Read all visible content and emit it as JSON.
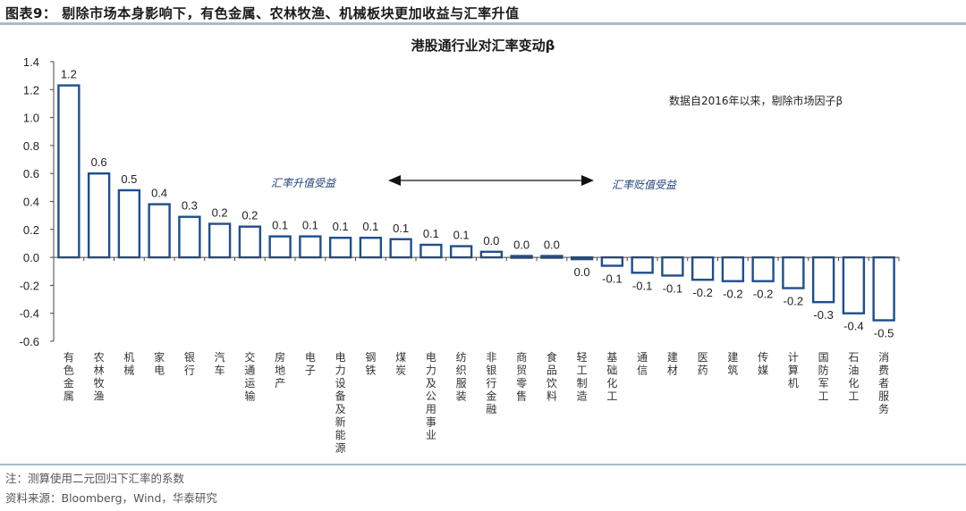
{
  "figure": {
    "title": "图表9： 剔除市场本身影响下，有色金属、农林牧渔、机械板块更加收益与汇率升值",
    "note_right": "数据自2016年以来，剔除市场因子β",
    "annotation_left": "汇率升值受益",
    "annotation_right": "汇率贬值受益",
    "footnote": "注：测算使用二元回归下汇率的系数",
    "source": "资料来源：Bloomberg，Wind，华泰研究"
  },
  "colors": {
    "bar_stroke": "#1f4e8c",
    "bar_fill": "#ffffff",
    "axis": "#444444",
    "rule": "#a9bcd0"
  },
  "chart_data": {
    "type": "bar",
    "title": "港股通行业对汇率变动β",
    "xlabel": "",
    "ylabel": "",
    "ylim": [
      -0.6,
      1.4
    ],
    "yticks": [
      1.4,
      1.2,
      1.0,
      0.8,
      0.6,
      0.4,
      0.2,
      0.0,
      -0.2,
      -0.4,
      -0.6
    ],
    "ytick_labels": [
      "1.4",
      "1.2",
      "1.0",
      "0.8",
      "0.6",
      "0.4",
      "0.2",
      "0.0",
      "-0.2",
      "-0.4",
      "-0.6"
    ],
    "grid": false,
    "legend": null,
    "categories": [
      "有色金属",
      "农林牧渔",
      "机械",
      "家电",
      "银行",
      "汽车",
      "交通运输",
      "房地产",
      "电子",
      "电力设备及新能源",
      "钢铁",
      "煤炭",
      "电力及公用事业",
      "纺织服装",
      "非银行金融",
      "商贸零售",
      "食品饮料",
      "轻工制造",
      "基础化工",
      "通信",
      "建材",
      "医药",
      "建筑",
      "传媒",
      "计算机",
      "国防军工",
      "石油化工",
      "消费者服务"
    ],
    "values": [
      1.23,
      0.6,
      0.48,
      0.38,
      0.29,
      0.24,
      0.22,
      0.15,
      0.15,
      0.14,
      0.14,
      0.13,
      0.09,
      0.08,
      0.04,
      0.01,
      0.01,
      -0.01,
      -0.06,
      -0.11,
      -0.13,
      -0.16,
      -0.17,
      -0.17,
      -0.22,
      -0.32,
      -0.4,
      -0.45
    ],
    "data_labels": [
      "1.2",
      "0.6",
      "0.5",
      "0.4",
      "0.3",
      "0.2",
      "0.2",
      "0.1",
      "0.1",
      "0.1",
      "0.1",
      "0.1",
      "0.1",
      "0.1",
      "0.0",
      "0.0",
      "0.0",
      "0.0",
      "-0.1",
      "-0.1",
      "-0.1",
      "-0.2",
      "-0.2",
      "-0.2",
      "-0.2",
      "-0.3",
      "-0.4",
      "-0.5"
    ],
    "annotations": [
      "汇率升值受益",
      "汇率贬值受益",
      "数据自2016年以来，剔除市场因子β"
    ]
  }
}
